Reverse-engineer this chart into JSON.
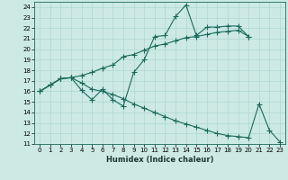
{
  "title": "",
  "xlabel": "Humidex (Indice chaleur)",
  "ylabel": "",
  "background_color": "#cce9e4",
  "line_color": "#1a6b5a",
  "x_data": [
    0,
    1,
    2,
    3,
    4,
    5,
    6,
    7,
    8,
    9,
    10,
    11,
    12,
    13,
    14,
    15,
    16,
    17,
    18,
    19,
    20,
    21,
    22,
    23
  ],
  "line1_y": [
    16.0,
    16.6,
    17.2,
    17.3,
    16.1,
    15.2,
    16.2,
    15.2,
    14.6,
    17.8,
    19.0,
    21.2,
    21.3,
    23.1,
    24.2,
    21.3,
    22.1,
    22.1,
    22.2,
    22.2,
    21.2,
    null,
    null,
    null
  ],
  "line2_y": [
    16.0,
    16.6,
    17.2,
    17.3,
    17.5,
    17.8,
    18.2,
    18.5,
    19.3,
    19.5,
    19.9,
    20.3,
    20.5,
    20.8,
    21.1,
    21.2,
    21.4,
    21.6,
    21.7,
    21.8,
    21.2,
    null,
    null,
    null
  ],
  "line3_y": [
    16.0,
    16.6,
    17.2,
    17.3,
    16.8,
    16.2,
    16.0,
    15.7,
    15.3,
    14.8,
    14.4,
    14.0,
    13.6,
    13.2,
    12.9,
    12.6,
    12.3,
    12.0,
    11.8,
    11.7,
    11.6,
    14.8,
    12.3,
    11.2
  ],
  "xlim": [
    -0.5,
    23.5
  ],
  "ylim": [
    11,
    24.5
  ],
  "yticks": [
    11,
    12,
    13,
    14,
    15,
    16,
    17,
    18,
    19,
    20,
    21,
    22,
    23,
    24
  ],
  "xticks": [
    0,
    1,
    2,
    3,
    4,
    5,
    6,
    7,
    8,
    9,
    10,
    11,
    12,
    13,
    14,
    15,
    16,
    17,
    18,
    19,
    20,
    21,
    22,
    23
  ],
  "xlabel_fontsize": 6,
  "tick_fontsize": 5,
  "marker_size": 2,
  "line_width": 0.8
}
